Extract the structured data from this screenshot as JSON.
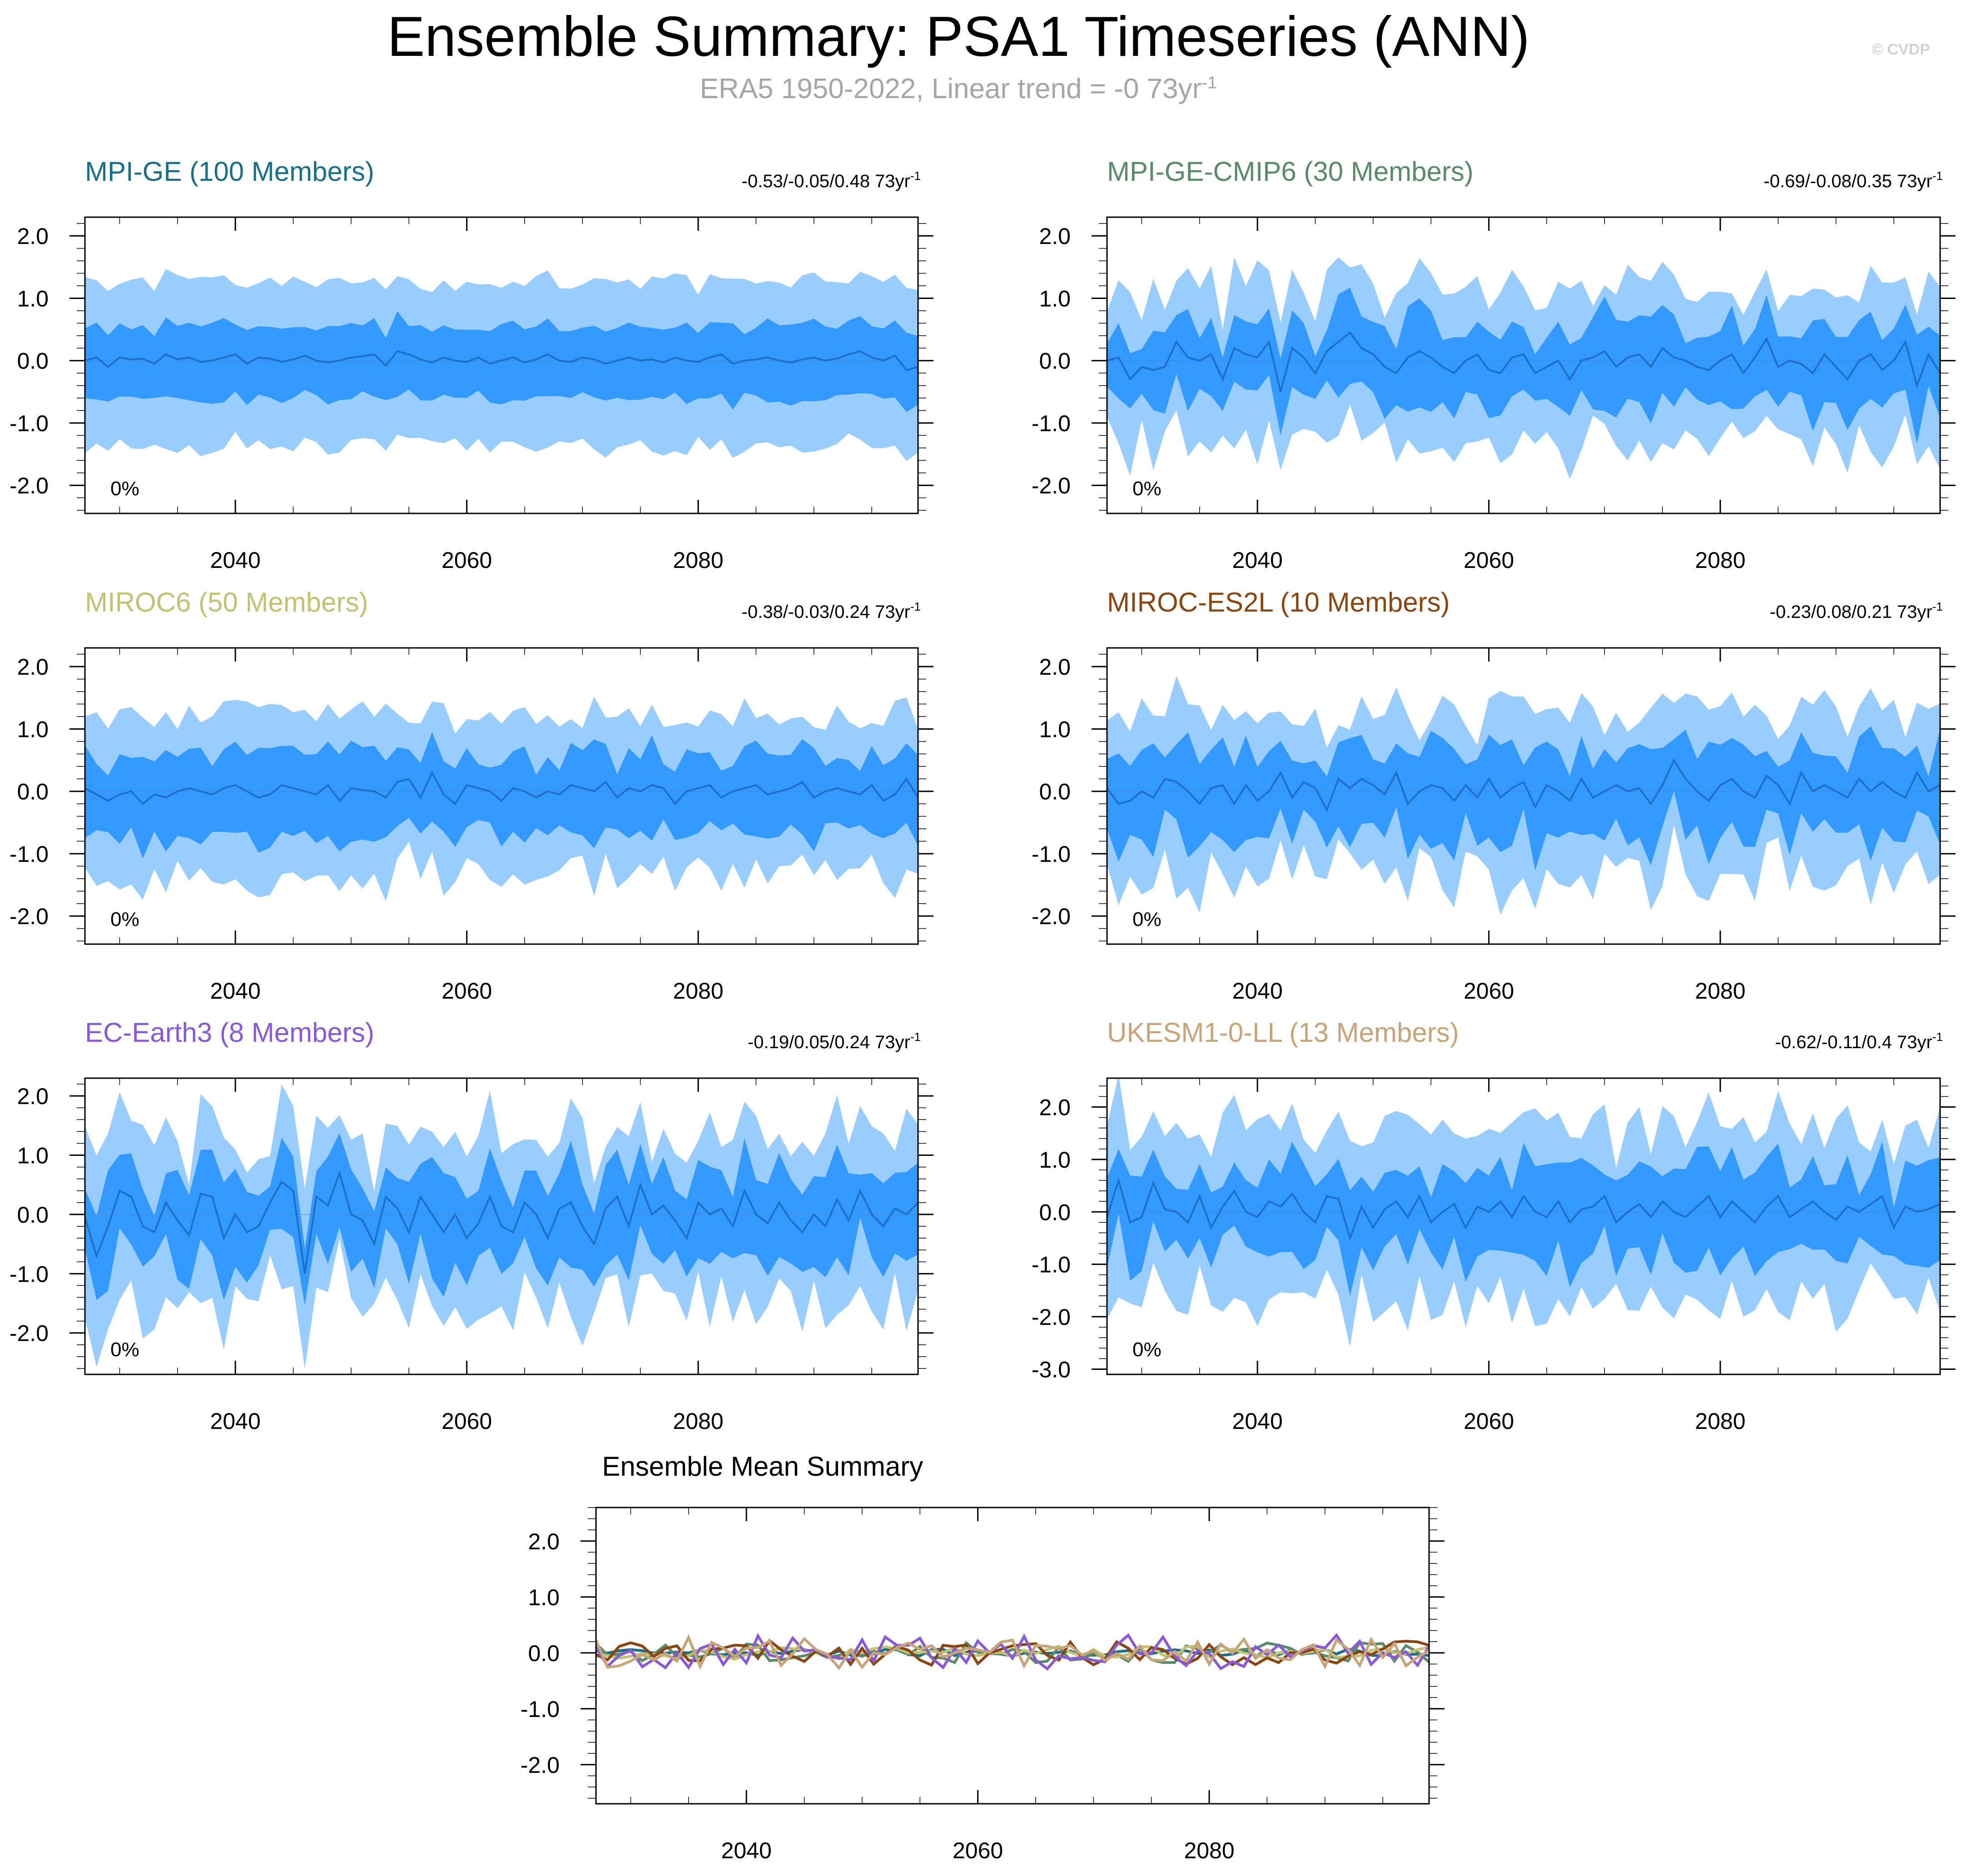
{
  "header": {
    "title": "Ensemble Summary: PSA1 Timeseries (ANN)",
    "subtitle_main": "ERA5 1950-2022, Linear trend = -0 73yr",
    "subtitle_exp": "-1",
    "watermark": "© CVDP"
  },
  "chart_data": [
    {
      "type": "area",
      "title": "MPI-GE (100 Members)",
      "trend_text": "-0.53/-0.05/0.48 73yr",
      "trend_exp": "-1",
      "pct_label": "0%",
      "color": "#1a6e8a",
      "x_start": 2027,
      "x_end": 2099,
      "xticks": [
        2040,
        2060,
        2080
      ],
      "ylim": [
        -2.45,
        2.3
      ],
      "yticks": [
        2.0,
        1.0,
        0.0,
        -1.0,
        -2.0
      ],
      "ytick_labels": [
        "2.0",
        "1.0",
        "0.0",
        "-1.0",
        "-2.0"
      ],
      "mean": [
        0.0,
        0.05,
        -0.1,
        0.05,
        0.02,
        0.03,
        -0.05,
        0.1,
        0.02,
        0.05,
        -0.02,
        0.0,
        0.05,
        0.1,
        -0.05,
        0.05,
        0.03,
        -0.02,
        0.02,
        0.08,
        0.0,
        -0.03,
        0.0,
        0.05,
        0.07,
        0.1,
        -0.08,
        0.15,
        0.1,
        0.02,
        -0.03,
        0.05,
        0.0,
        -0.02,
        0.05,
        -0.05,
        0.0,
        0.05,
        -0.03,
        0.02,
        0.1,
        0.0,
        -0.02,
        0.05,
        0.02,
        -0.05,
        0.0,
        0.05,
        0.0,
        0.02,
        -0.03,
        0.05,
        0.0,
        -0.02,
        0.05,
        0.1,
        -0.05,
        0.0,
        0.02,
        0.05,
        0.0,
        -0.03,
        0.02,
        0.05,
        0.0,
        0.03,
        0.1,
        0.15,
        0.05,
        0.0,
        0.08,
        -0.15,
        -0.1
      ],
      "inner": 0.62,
      "outer": 1.38,
      "wiggle": 0.12
    },
    {
      "type": "area",
      "title": "MPI-GE-CMIP6 (30 Members)",
      "trend_text": "-0.69/-0.08/0.35 73yr",
      "trend_exp": "-1",
      "pct_label": "0%",
      "color": "#5a8a6a",
      "x_start": 2027,
      "x_end": 2099,
      "xticks": [
        2040,
        2060,
        2080
      ],
      "ylim": [
        -2.45,
        2.3
      ],
      "yticks": [
        2.0,
        1.0,
        0.0,
        -1.0,
        -2.0
      ],
      "ytick_labels": [
        "2.0",
        "1.0",
        "0.0",
        "-1.0",
        "-2.0"
      ],
      "mean": [
        0.0,
        0.05,
        -0.3,
        -0.1,
        -0.15,
        -0.1,
        0.3,
        0.05,
        0.0,
        0.1,
        -0.3,
        0.2,
        0.1,
        0.05,
        0.3,
        -0.5,
        0.2,
        0.05,
        -0.2,
        0.15,
        0.3,
        0.45,
        0.2,
        0.1,
        -0.1,
        -0.2,
        0.05,
        0.15,
        0.05,
        -0.1,
        -0.2,
        0.0,
        0.1,
        -0.15,
        -0.2,
        0.05,
        0.1,
        -0.2,
        -0.1,
        0.0,
        -0.3,
        0.0,
        0.05,
        0.15,
        -0.1,
        0.05,
        0.1,
        -0.1,
        0.2,
        0.05,
        0.0,
        -0.1,
        -0.15,
        0.0,
        0.1,
        -0.2,
        0.05,
        0.35,
        -0.1,
        0.0,
        -0.05,
        -0.2,
        0.1,
        -0.1,
        -0.3,
        0.0,
        0.1,
        -0.15,
        0.0,
        0.3,
        -0.4,
        0.1,
        -0.2
      ],
      "inner": 0.68,
      "outer": 1.3,
      "wiggle": 0.3
    },
    {
      "type": "area",
      "title": "MIROC6 (50 Members)",
      "trend_text": "-0.38/-0.03/0.24 73yr",
      "trend_exp": "-1",
      "pct_label": "0%",
      "color": "#c2c272",
      "x_start": 2027,
      "x_end": 2099,
      "xticks": [
        2040,
        2060,
        2080
      ],
      "ylim": [
        -2.45,
        2.3
      ],
      "yticks": [
        2.0,
        1.0,
        0.0,
        -1.0,
        -2.0
      ],
      "ytick_labels": [
        "2.0",
        "1.0",
        "0.0",
        "-1.0",
        "-2.0"
      ],
      "mean": [
        0.05,
        -0.05,
        -0.15,
        -0.05,
        0.0,
        -0.2,
        -0.05,
        -0.1,
        0.0,
        0.05,
        0.0,
        -0.05,
        0.05,
        0.1,
        0.0,
        -0.1,
        -0.05,
        0.1,
        0.05,
        0.0,
        -0.05,
        0.1,
        -0.15,
        0.05,
        0.02,
        0.0,
        -0.1,
        0.15,
        0.2,
        -0.1,
        0.3,
        -0.05,
        -0.2,
        0.1,
        0.05,
        0.0,
        -0.15,
        0.05,
        0.0,
        -0.1,
        0.0,
        -0.05,
        0.1,
        0.05,
        0.0,
        0.15,
        -0.1,
        0.05,
        0.0,
        0.1,
        0.05,
        -0.2,
        0.0,
        0.05,
        0.1,
        -0.1,
        0.0,
        0.05,
        0.1,
        -0.05,
        0.0,
        0.05,
        0.15,
        -0.1,
        0.0,
        0.05,
        0.0,
        -0.05,
        0.1,
        -0.15,
        -0.05,
        0.2,
        -0.1
      ],
      "inner": 0.7,
      "outer": 1.35,
      "wiggle": 0.22
    },
    {
      "type": "area",
      "title": "MIROC-ES2L (10 Members)",
      "trend_text": "-0.23/0.08/0.21 73yr",
      "trend_exp": "-1",
      "pct_label": "0%",
      "color": "#8b4513",
      "x_start": 2027,
      "x_end": 2099,
      "xticks": [
        2040,
        2060,
        2080
      ],
      "ylim": [
        -2.45,
        2.3
      ],
      "yticks": [
        2.0,
        1.0,
        0.0,
        -1.0,
        -2.0
      ],
      "ytick_labels": [
        "2.0",
        "1.0",
        "0.0",
        "-1.0",
        "-2.0"
      ],
      "mean": [
        0.05,
        -0.2,
        -0.15,
        0.0,
        -0.1,
        0.2,
        0.15,
        0.0,
        -0.2,
        0.05,
        0.1,
        -0.2,
        0.1,
        -0.15,
        0.0,
        0.3,
        -0.1,
        0.15,
        0.05,
        -0.3,
        0.2,
        0.05,
        0.2,
        0.1,
        -0.05,
        0.3,
        -0.2,
        0.0,
        0.1,
        0.05,
        -0.15,
        0.1,
        -0.1,
        0.2,
        -0.1,
        0.05,
        0.15,
        -0.25,
        0.1,
        0.0,
        -0.15,
        0.2,
        -0.1,
        0.0,
        0.1,
        0.0,
        0.05,
        -0.2,
        0.1,
        0.5,
        0.2,
        0.0,
        -0.15,
        0.1,
        0.2,
        0.0,
        -0.1,
        0.25,
        0.1,
        -0.2,
        0.3,
        0.0,
        0.1,
        0.0,
        -0.1,
        0.2,
        0.0,
        0.15,
        0.0,
        -0.1,
        0.3,
        0.0,
        0.1
      ],
      "inner": 0.75,
      "outer": 1.35,
      "wiggle": 0.35
    },
    {
      "type": "area",
      "title": "EC-Earth3 (8 Members)",
      "trend_text": "-0.19/0.05/0.24 73yr",
      "trend_exp": "-1",
      "pct_label": "0%",
      "color": "#8a5ad6",
      "x_start": 2027,
      "x_end": 2099,
      "xticks": [
        2040,
        2060,
        2080
      ],
      "ylim": [
        -2.7,
        2.3
      ],
      "yticks": [
        2.0,
        1.0,
        0.0,
        -1.0,
        -2.0
      ],
      "ytick_labels": [
        "2.0",
        "1.0",
        "0.0",
        "-1.0",
        "-2.0"
      ],
      "mean": [
        -0.05,
        -0.7,
        -0.2,
        0.4,
        0.3,
        -0.2,
        -0.3,
        0.2,
        -0.1,
        -0.35,
        0.35,
        0.3,
        -0.4,
        0.0,
        -0.3,
        -0.2,
        0.2,
        0.55,
        0.4,
        -1.0,
        0.3,
        0.15,
        0.7,
        0.0,
        -0.1,
        -0.5,
        0.3,
        0.1,
        -0.3,
        0.3,
        0.0,
        -0.3,
        0.0,
        -0.4,
        -0.15,
        0.3,
        -0.2,
        -0.3,
        0.2,
        0.0,
        -0.4,
        0.1,
        0.2,
        -0.2,
        -0.5,
        0.1,
        0.3,
        -0.2,
        0.5,
        0.0,
        0.15,
        -0.1,
        -0.4,
        0.2,
        0.0,
        0.1,
        -0.2,
        0.4,
        0.0,
        -0.15,
        0.2,
        -0.1,
        -0.3,
        0.0,
        -0.2,
        0.25,
        -0.1,
        0.4,
        0.0,
        -0.2,
        0.1,
        0.0,
        0.2
      ],
      "inner": 0.75,
      "outer": 1.45,
      "wiggle": 0.4
    },
    {
      "type": "area",
      "title": "UKESM1-0-LL (13 Members)",
      "trend_text": "-0.62/-0.11/0.4 73yr",
      "trend_exp": "-1",
      "pct_label": "0%",
      "color": "#c8a47a",
      "x_start": 2027,
      "x_end": 2099,
      "xticks": [
        2040,
        2060,
        2080
      ],
      "ylim": [
        -3.1,
        2.55
      ],
      "yticks": [
        2.0,
        1.0,
        0.0,
        -1.0,
        -2.0,
        -3.0
      ],
      "ytick_labels": [
        "2.0",
        "1.0",
        "0.0",
        "-1.0",
        "-2.0",
        "-3.0"
      ],
      "mean": [
        -0.1,
        0.6,
        -0.2,
        -0.1,
        0.55,
        0.05,
        0.0,
        -0.2,
        0.3,
        -0.3,
        0.1,
        0.4,
        0.0,
        -0.1,
        0.2,
        0.1,
        0.35,
        0.0,
        -0.2,
        0.3,
        0.25,
        -0.5,
        0.1,
        -0.3,
        0.05,
        0.2,
        -0.1,
        0.3,
        -0.2,
        0.0,
        0.15,
        -0.3,
        0.1,
        0.0,
        0.2,
        -0.1,
        0.3,
        0.0,
        -0.1,
        0.2,
        -0.2,
        0.05,
        0.1,
        0.3,
        -0.2,
        0.0,
        0.15,
        -0.1,
        0.2,
        0.0,
        -0.1,
        0.1,
        0.3,
        -0.1,
        0.2,
        0.0,
        -0.2,
        0.1,
        0.3,
        -0.1,
        0.05,
        0.2,
        0.0,
        -0.15,
        0.1,
        0.0,
        0.15,
        0.3,
        -0.3,
        0.1,
        0.0,
        0.05,
        0.15
      ],
      "inner": 0.85,
      "outer": 1.7,
      "wiggle": 0.4
    },
    {
      "type": "line",
      "title": "Ensemble Mean Summary",
      "x_start": 2027,
      "x_end": 2099,
      "xticks": [
        2040,
        2060,
        2080
      ],
      "ylim": [
        -2.7,
        2.6
      ],
      "yticks": [
        2.0,
        1.0,
        0.0,
        -1.0,
        -2.0
      ],
      "ytick_labels": [
        "2.0",
        "1.0",
        "0.0",
        "-1.0",
        "-2.0"
      ],
      "series": [
        {
          "name": "MPI-GE",
          "color": "#1a6e8a",
          "amp": 0.07,
          "seed": 1
        },
        {
          "name": "MPI-GE-CMIP6",
          "color": "#5a8a6a",
          "amp": 0.18,
          "seed": 2
        },
        {
          "name": "MIROC6",
          "color": "#c2c272",
          "amp": 0.12,
          "seed": 3
        },
        {
          "name": "MIROC-ES2L",
          "color": "#8b4513",
          "amp": 0.22,
          "seed": 4
        },
        {
          "name": "EC-Earth3",
          "color": "#8a5ad6",
          "amp": 0.32,
          "seed": 5
        },
        {
          "name": "UKESM1-0-LL",
          "color": "#c8a47a",
          "amp": 0.28,
          "seed": 6
        }
      ]
    }
  ],
  "style": {
    "inner_fill": "#3399ff",
    "outer_fill": "#9acdff",
    "mean_line": "#1e6fc8"
  }
}
